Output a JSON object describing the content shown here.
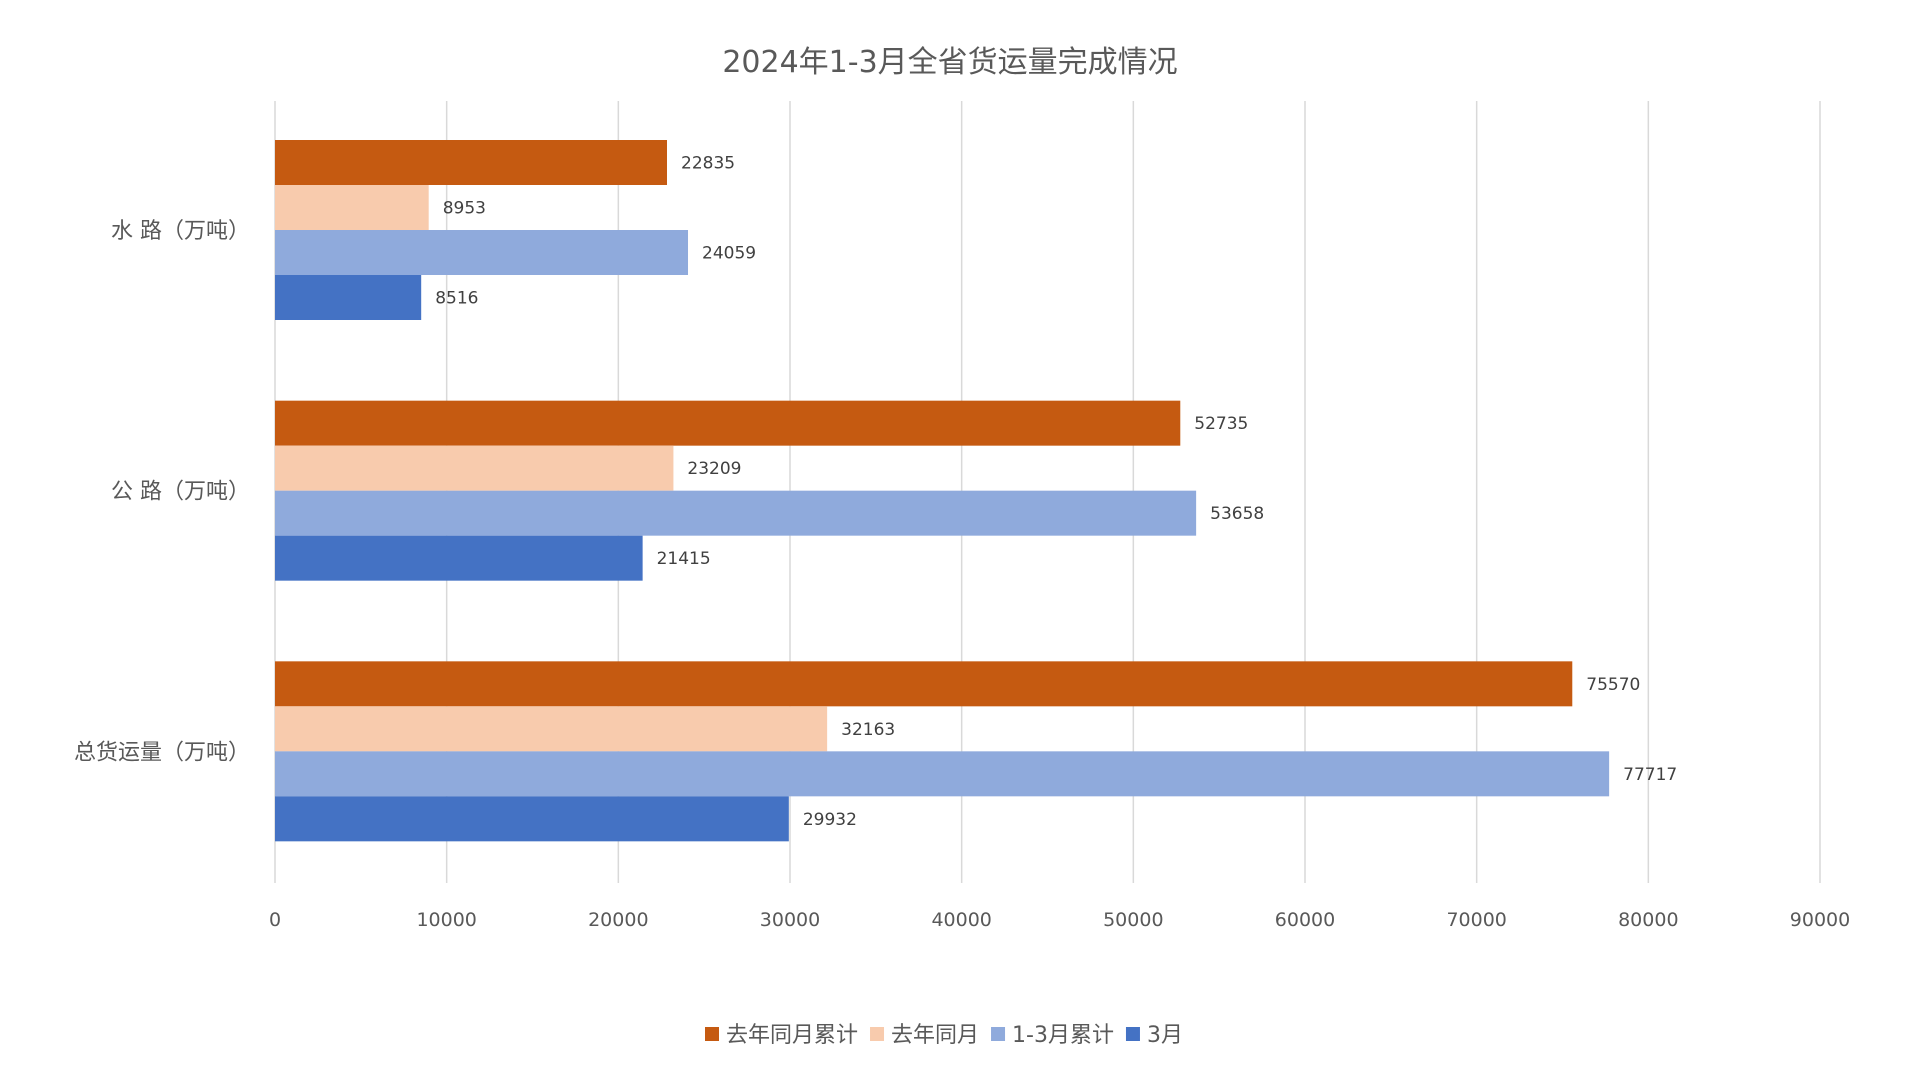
{
  "chart_data": {
    "type": "bar",
    "orientation": "horizontal",
    "title": "2024年1-3月全省货运量完成情况",
    "categories": [
      "水 路（万吨）",
      "公 路（万吨）",
      "总货运量（万吨）"
    ],
    "series": [
      {
        "name": "去年同月累计",
        "color": "#C55A11",
        "values": [
          22835,
          52735,
          75570
        ]
      },
      {
        "name": "去年同月",
        "color": "#F8CBAD",
        "values": [
          8953,
          23209,
          32163
        ]
      },
      {
        "name": "1-3月累计",
        "color": "#8FAADC",
        "values": [
          24059,
          53658,
          77717
        ]
      },
      {
        "name": "3月",
        "color": "#4472C4",
        "values": [
          8516,
          21415,
          29932
        ]
      }
    ],
    "xlim": [
      0,
      90000
    ],
    "xticks": [
      0,
      10000,
      20000,
      30000,
      40000,
      50000,
      60000,
      70000,
      80000,
      90000
    ],
    "grid": true,
    "legend": "bottom",
    "data_labels": true
  }
}
